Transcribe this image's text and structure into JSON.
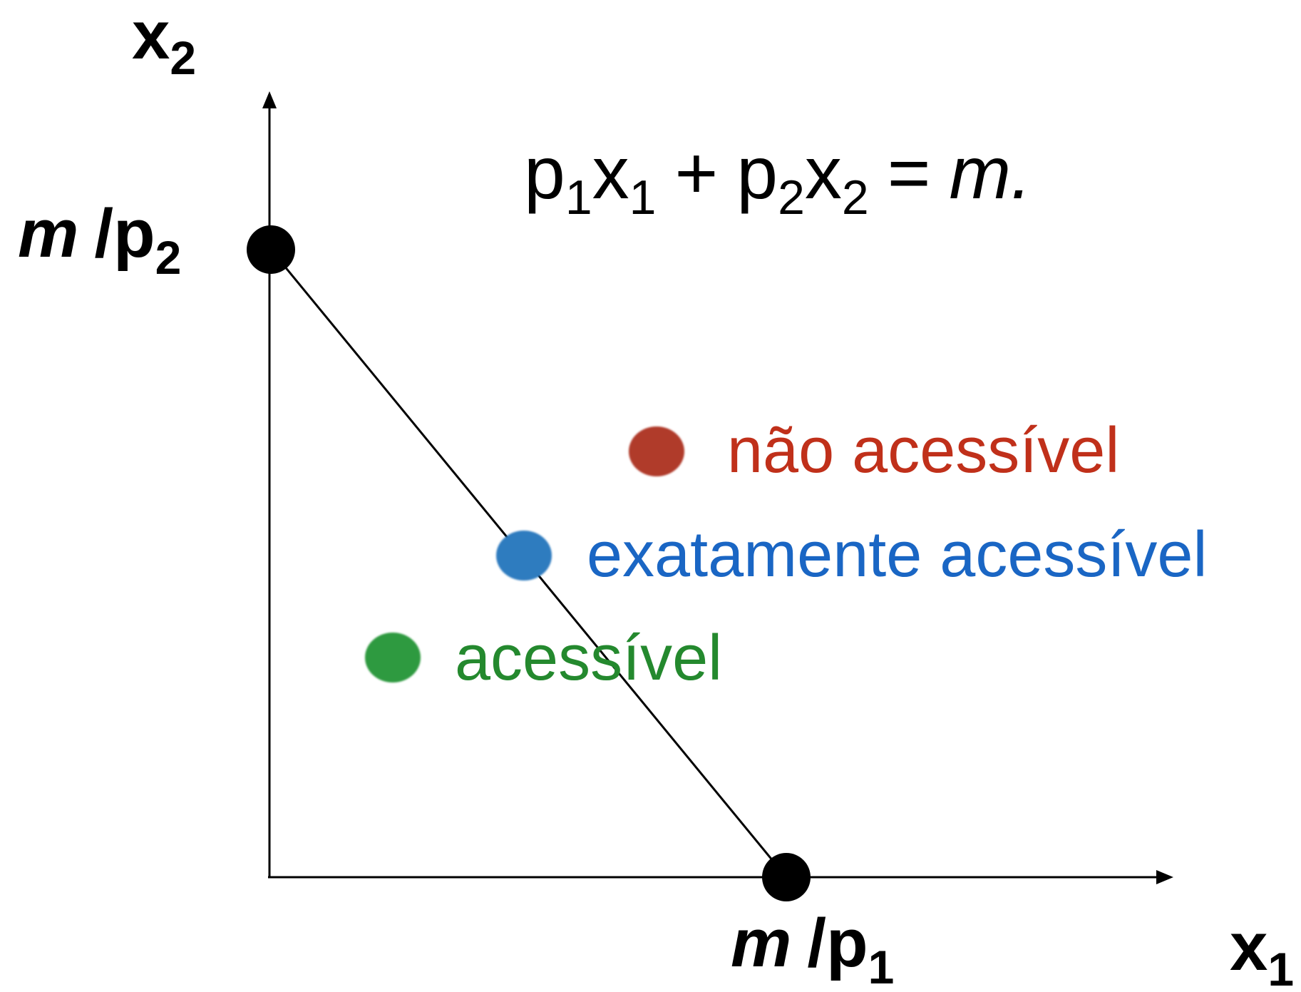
{
  "axes": {
    "y_label": {
      "base": "x",
      "sub": "2"
    },
    "x_label": {
      "base": "x",
      "sub": "1"
    }
  },
  "equation": {
    "p1": "p",
    "p1_sub": "1",
    "x1": "x",
    "x1_sub": "1",
    "plus": "+",
    "p2": "p",
    "p2_sub": "2",
    "x2": "x",
    "x2_sub": "2",
    "equals": "=",
    "rhs": "m."
  },
  "intercepts": {
    "y": {
      "m": "m",
      "slash_p": "/p",
      "sub": "2"
    },
    "x": {
      "m": "m",
      "slash_p": "/p",
      "sub": "1"
    }
  },
  "points": [
    {
      "label": "não acessível",
      "color": "#b03a2a",
      "text_color": "#c0301a"
    },
    {
      "label": "exatamente acessível",
      "color": "#2f7bbf",
      "text_color": "#1a66c4"
    },
    {
      "label": "acessível",
      "color": "#2f9a3f",
      "text_color": "#24892e"
    }
  ],
  "colors": {
    "axis": "#000000",
    "budget_line": "#000000",
    "intercept_dot": "#000000"
  }
}
